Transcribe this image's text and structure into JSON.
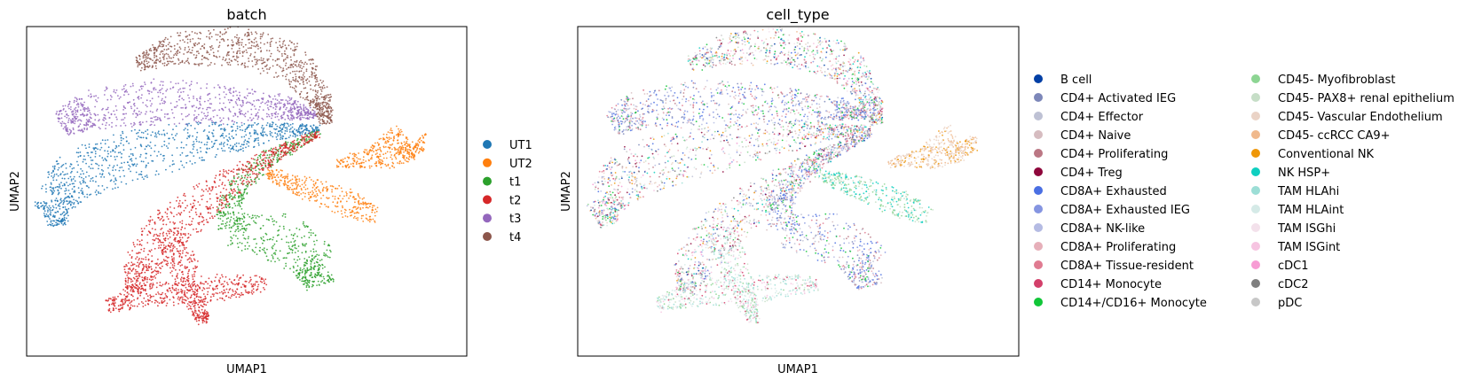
{
  "chart_data": [
    {
      "type": "scatter",
      "title": "batch",
      "xlabel": "UMAP1",
      "ylabel": "UMAP2",
      "grid": false,
      "ticks": false,
      "legend_position": "right",
      "series": [
        {
          "name": "UT1",
          "color": "#1f77b4"
        },
        {
          "name": "UT2",
          "color": "#ff7f0e"
        },
        {
          "name": "t1",
          "color": "#2ca02c"
        },
        {
          "name": "t2",
          "color": "#d62728"
        },
        {
          "name": "t3",
          "color": "#9467bd"
        },
        {
          "name": "t4",
          "color": "#8c564b"
        }
      ]
    },
    {
      "type": "scatter",
      "title": "cell_type",
      "xlabel": "UMAP1",
      "ylabel": "UMAP2",
      "grid": false,
      "ticks": false,
      "legend_position": "right",
      "series": [
        {
          "name": "B cell",
          "color": "#023fa5"
        },
        {
          "name": "CD4+ Activated IEG",
          "color": "#7d87b9"
        },
        {
          "name": "CD4+ Effector",
          "color": "#bec1d4"
        },
        {
          "name": "CD4+ Naive",
          "color": "#d6bcc0"
        },
        {
          "name": "CD4+ Proliferating",
          "color": "#bb7784"
        },
        {
          "name": "CD4+ Treg",
          "color": "#8e063b"
        },
        {
          "name": "CD8A+ Exhausted",
          "color": "#4a6fe3"
        },
        {
          "name": "CD8A+ Exhausted IEG",
          "color": "#8595e1"
        },
        {
          "name": "CD8A+ NK-like",
          "color": "#b5bbe3"
        },
        {
          "name": "CD8A+ Proliferating",
          "color": "#e6afb9"
        },
        {
          "name": "CD8A+ Tissue-resident",
          "color": "#e07b91"
        },
        {
          "name": "CD14+ Monocyte",
          "color": "#d33f6a"
        },
        {
          "name": "CD14+/CD16+ Monocyte",
          "color": "#11c638"
        },
        {
          "name": "CD45- Myofibroblast",
          "color": "#8dd593"
        },
        {
          "name": "CD45- PAX8+ renal epithelium",
          "color": "#c6dec7"
        },
        {
          "name": "CD45- Vascular Endothelium",
          "color": "#ead3c6"
        },
        {
          "name": "CD45- ccRCC CA9+",
          "color": "#f0b98d"
        },
        {
          "name": "Conventional NK",
          "color": "#ef9708"
        },
        {
          "name": "NK HSP+",
          "color": "#0fcfc0"
        },
        {
          "name": "TAM HLAhi",
          "color": "#9cded6"
        },
        {
          "name": "TAM HLAint",
          "color": "#d5eae7"
        },
        {
          "name": "TAM ISGhi",
          "color": "#f3e1eb"
        },
        {
          "name": "TAM ISGint",
          "color": "#f6c4e1"
        },
        {
          "name": "cDC1",
          "color": "#f79cd4"
        },
        {
          "name": "cDC2",
          "color": "#7f7f7f"
        },
        {
          "name": "pDC",
          "color": "#c7c7c7"
        }
      ]
    }
  ]
}
